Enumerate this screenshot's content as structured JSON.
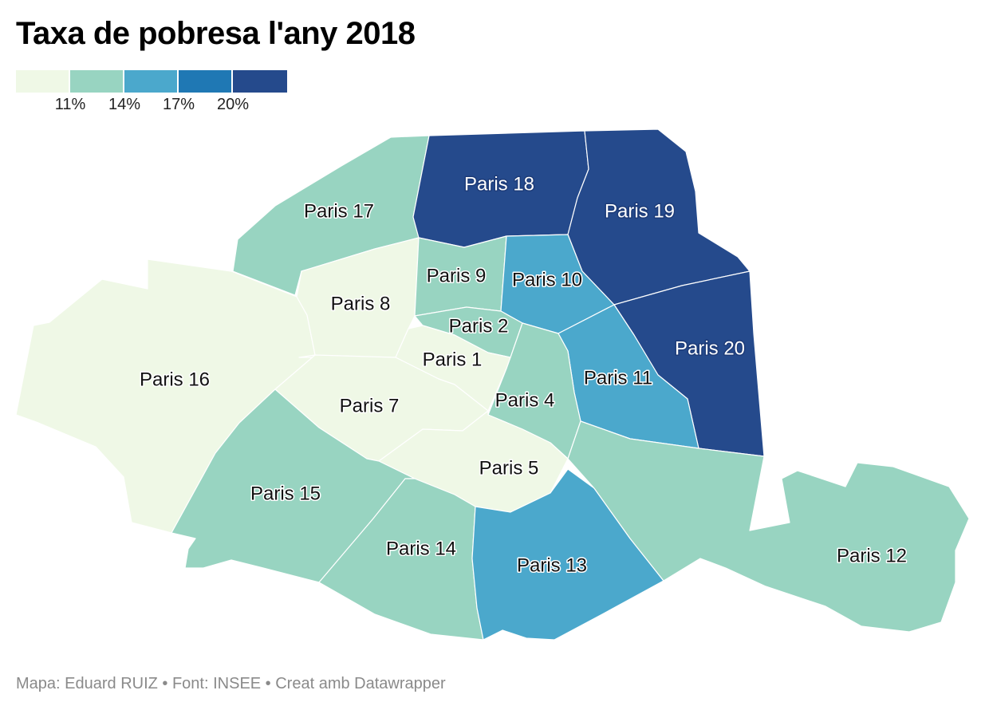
{
  "title": "Taxa de pobresa l'any 2018",
  "legend": {
    "colors": [
      "#eff8e6",
      "#98d4c1",
      "#4ba8cc",
      "#1f78b4",
      "#254a8c"
    ],
    "ticks": [
      "11%",
      "14%",
      "17%",
      "20%"
    ]
  },
  "districts": [
    {
      "id": "p1",
      "label": "Paris 1",
      "color": "#eff8e6"
    },
    {
      "id": "p2",
      "label": "Paris 2",
      "color": "#98d4c1"
    },
    {
      "id": "p4",
      "label": "Paris 4",
      "color": "#98d4c1"
    },
    {
      "id": "p5",
      "label": "Paris 5",
      "color": "#eff8e6"
    },
    {
      "id": "p7",
      "label": "Paris 7",
      "color": "#eff8e6"
    },
    {
      "id": "p8",
      "label": "Paris 8",
      "color": "#eff8e6"
    },
    {
      "id": "p9",
      "label": "Paris 9",
      "color": "#98d4c1"
    },
    {
      "id": "p10",
      "label": "Paris 10",
      "color": "#4ba8cc"
    },
    {
      "id": "p11",
      "label": "Paris 11",
      "color": "#4ba8cc"
    },
    {
      "id": "p12",
      "label": "Paris 12",
      "color": "#98d4c1"
    },
    {
      "id": "p13",
      "label": "Paris 13",
      "color": "#4ba8cc"
    },
    {
      "id": "p14",
      "label": "Paris 14",
      "color": "#98d4c1"
    },
    {
      "id": "p15",
      "label": "Paris 15",
      "color": "#98d4c1"
    },
    {
      "id": "p16",
      "label": "Paris 16",
      "color": "#eff8e6"
    },
    {
      "id": "p17",
      "label": "Paris 17",
      "color": "#98d4c1"
    },
    {
      "id": "p18",
      "label": "Paris 18",
      "color": "#254a8c"
    },
    {
      "id": "p19",
      "label": "Paris 19",
      "color": "#254a8c"
    },
    {
      "id": "p20",
      "label": "Paris 20",
      "color": "#254a8c"
    }
  ],
  "footer": "Mapa: Eduard RUIZ • Font: INSEE • Creat amb Datawrapper"
}
